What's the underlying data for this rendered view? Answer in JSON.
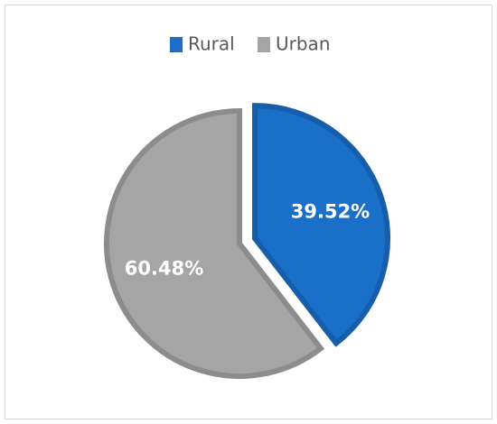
{
  "chart_data": {
    "type": "pie",
    "categories": [
      "Rural",
      "Urban"
    ],
    "values": [
      39.52,
      60.48
    ],
    "value_labels": [
      "39.52%",
      "60.48%"
    ],
    "colors": [
      "#1a6fc8",
      "#a5a5a5"
    ],
    "legend": "top",
    "exploded": [
      "Rural"
    ]
  }
}
